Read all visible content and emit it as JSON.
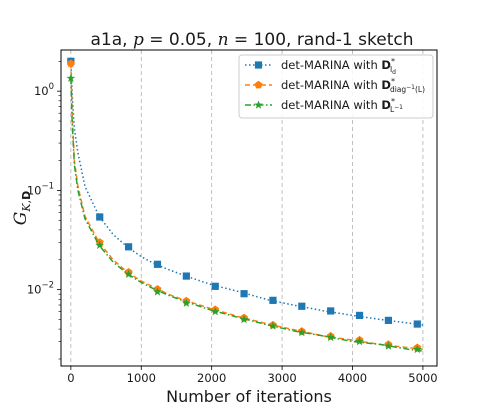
{
  "chart_data": {
    "type": "line",
    "title": "a1a, p = 0.05, n = 100, rand-1 sketch",
    "xlabel": "Number of iterations",
    "ylabel": "G_{K,D}",
    "xlim": [
      -140,
      5200
    ],
    "ylim": [
      0.0017,
      2.6
    ],
    "yscale": "log",
    "grid": "vertical-dashed",
    "legend_placement": "top-right",
    "x_ticks": [
      0,
      1000,
      2000,
      3000,
      4000,
      5000
    ],
    "y_ticks": [
      {
        "value": 1,
        "label": "10^0"
      },
      {
        "value": 0.1,
        "label": "10^-1"
      },
      {
        "value": 0.01,
        "label": "10^-2"
      }
    ],
    "series": [
      {
        "name": "det-MARINA with D*_Id",
        "color": "#1f77b4",
        "linestyle": "dotted",
        "marker": "square",
        "x": [
          0,
          20,
          50,
          100,
          200,
          400,
          600,
          800,
          1000,
          1200,
          1400,
          1600,
          1800,
          2000,
          2400,
          2800,
          3200,
          3600,
          4000,
          4400,
          4800,
          5000
        ],
        "y": [
          2.0,
          0.9,
          0.42,
          0.24,
          0.11,
          0.055,
          0.036,
          0.027,
          0.0215,
          0.018,
          0.0158,
          0.014,
          0.0125,
          0.0112,
          0.0095,
          0.0079,
          0.0069,
          0.0061,
          0.0055,
          0.005,
          0.0046,
          0.0044
        ],
        "marker_x": [
          0,
          410,
          820,
          1230,
          1640,
          2050,
          2460,
          2870,
          3280,
          3690,
          4100,
          4510,
          4920
        ],
        "marker_y": [
          2.0,
          0.054,
          0.027,
          0.018,
          0.0137,
          0.0108,
          0.0091,
          0.0078,
          0.0068,
          0.0061,
          0.0055,
          0.0049,
          0.0045
        ]
      },
      {
        "name": "det-MARINA with D*_diag^-1(L)",
        "color": "#ff7f0e",
        "linestyle": "dashed",
        "marker": "pentagon",
        "x": [
          0,
          20,
          50,
          100,
          200,
          400,
          600,
          800,
          1000,
          1200,
          1400,
          1600,
          1800,
          2000,
          2400,
          2800,
          3200,
          3600,
          4000,
          4400,
          4800,
          5000
        ],
        "y": [
          1.9,
          0.55,
          0.2,
          0.11,
          0.055,
          0.03,
          0.02,
          0.015,
          0.0122,
          0.0104,
          0.0089,
          0.0079,
          0.0071,
          0.0064,
          0.0053,
          0.0045,
          0.0039,
          0.0034,
          0.0031,
          0.0028,
          0.0026,
          0.0025
        ],
        "marker_x": [
          0,
          410,
          820,
          1230,
          1640,
          2050,
          2460,
          2870,
          3280,
          3690,
          4100,
          4510,
          4920
        ],
        "marker_y": [
          1.9,
          0.03,
          0.015,
          0.0101,
          0.0077,
          0.0063,
          0.0052,
          0.0044,
          0.0038,
          0.0034,
          0.0031,
          0.0028,
          0.0026
        ]
      },
      {
        "name": "det-MARINA with D*_L^-1",
        "color": "#2ca02c",
        "linestyle": "dashdot",
        "marker": "star",
        "x": [
          0,
          20,
          50,
          100,
          200,
          400,
          600,
          800,
          1000,
          1200,
          1400,
          1600,
          1800,
          2000,
          2400,
          2800,
          3200,
          3600,
          4000,
          4400,
          4800,
          5000
        ],
        "y": [
          1.35,
          0.45,
          0.18,
          0.1,
          0.052,
          0.028,
          0.019,
          0.0145,
          0.0118,
          0.01,
          0.0087,
          0.0077,
          0.0069,
          0.0062,
          0.0052,
          0.0044,
          0.0038,
          0.0034,
          0.003,
          0.0028,
          0.0025,
          0.0024
        ],
        "marker_x": [
          0,
          410,
          820,
          1230,
          1640,
          2050,
          2460,
          2870,
          3280,
          3690,
          4100,
          4510,
          4920
        ],
        "marker_y": [
          1.35,
          0.028,
          0.0143,
          0.0095,
          0.0073,
          0.006,
          0.005,
          0.0043,
          0.0037,
          0.0033,
          0.003,
          0.0027,
          0.0025
        ]
      }
    ]
  }
}
